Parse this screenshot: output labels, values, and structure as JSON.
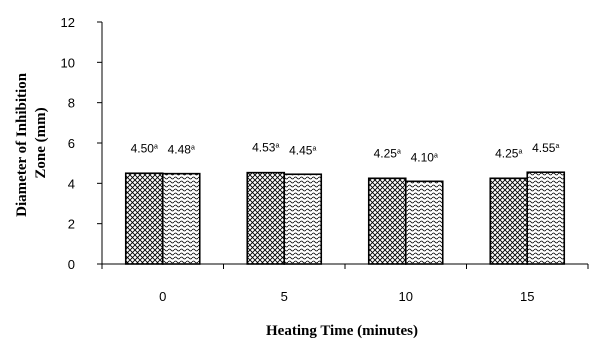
{
  "chart_data": {
    "type": "bar",
    "xlabel": "Heating Time (minutes)",
    "ylabel": "Diameter of Inhibition Zone (mm)",
    "ylim": [
      0,
      12
    ],
    "yticks": [
      0,
      2,
      4,
      6,
      8,
      10,
      12
    ],
    "categories": [
      "0",
      "5",
      "10",
      "15"
    ],
    "grid": false,
    "legend": "none",
    "series": [
      {
        "pattern": "crosshatch",
        "values": [
          4.5,
          4.53,
          4.25,
          4.25
        ],
        "labels": [
          "4.50",
          "4.53",
          "4.25",
          "4.25"
        ],
        "superscripts": [
          "a",
          "a",
          "a",
          "a"
        ]
      },
      {
        "pattern": "wave",
        "values": [
          4.48,
          4.45,
          4.1,
          4.55
        ],
        "labels": [
          "4.48",
          "4.45",
          "4.10",
          "4.55"
        ],
        "superscripts": [
          "a",
          "a",
          "a",
          "a"
        ]
      }
    ]
  }
}
